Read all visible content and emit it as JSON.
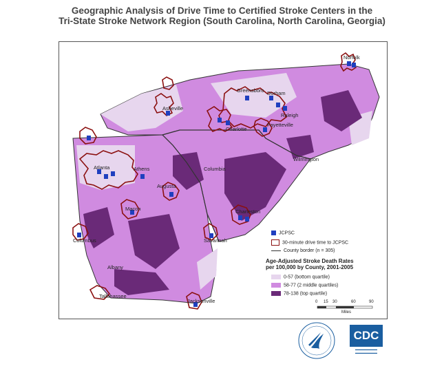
{
  "title": {
    "line1": "Geographic Analysis of Drive Time to Certified Stroke Centers in the",
    "line2": "Tri-State Stroke Network Region (South Carolina, North Carolina, Georgia)"
  },
  "cities": {
    "norfolk": "Norfolk",
    "greensboro": "Greensboro",
    "durham": "Durham",
    "raleigh": "Raleigh",
    "asheville": "Asheville",
    "charlotte": "Charlotte",
    "fayetteville": "Fayetteville",
    "wilmington": "Wilmington",
    "atlanta": "Atlanta",
    "athens": "Athens",
    "columbia": "Columbia",
    "augusta": "Augusta",
    "macon": "Macon",
    "charleston": "Charleston",
    "columbus": "Columbus",
    "savannah": "Savannah",
    "albany": "Albany",
    "tallahassee": "Tallahassee",
    "jacksonville": "Jacksonville"
  },
  "legend": {
    "jcpsc": "JCPSC",
    "drive_time": "30-minute drive time to JCPSC",
    "county_border": "County border (n = 305)",
    "heading_line1": "Age-Adjusted Stroke Death Rates",
    "heading_line2": "per 100,000 by County, 2001-2005",
    "classes": [
      {
        "label": "0-57 (bottom quartile)",
        "color": "#e7d6ee"
      },
      {
        "label": "58-77 (2 middle quartiles)",
        "color": "#d08be0"
      },
      {
        "label": "78-138 (top quartile)",
        "color": "#6a2a78"
      }
    ]
  },
  "scale": {
    "ticks": [
      "0",
      "15",
      "30",
      "60",
      "90"
    ],
    "unit": "Miles"
  },
  "colors": {
    "drive_time_outline": "#8b1010",
    "marker": "#1f3fbf",
    "state_border": "#333333"
  },
  "logos": {
    "hhs": "hhs-eagle-seal",
    "cdc_text": "CDC"
  }
}
